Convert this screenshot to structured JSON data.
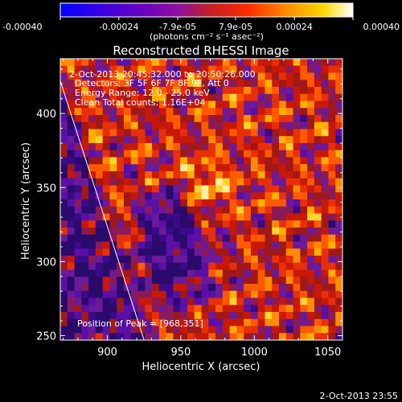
{
  "chart_data": {
    "type": "heatmap",
    "title": "Reconstructed RHESSI Image",
    "xlabel": "Heliocentric X (arcsec)",
    "ylabel": "Heliocentric Y (arcsec)",
    "xlim": [
      868,
      1060
    ],
    "ylim": [
      247,
      437
    ],
    "xticks": [
      "900",
      "950",
      "1000",
      "1050"
    ],
    "xtick_values": [
      900,
      950,
      1000,
      1050
    ],
    "yticks": [
      "250",
      "300",
      "350",
      "400"
    ],
    "ytick_values": [
      250,
      300,
      350,
      400
    ],
    "colorbar": {
      "label": "(photons cm⁻² s⁻¹ asec⁻²)",
      "tick_labels": [
        "-0.00040",
        "-0.00024",
        "-7.9e-05",
        "7.9e-05",
        "0.00024",
        "0.00040"
      ],
      "tick_values": [
        -0.0004,
        -0.00024,
        -7.9e-05,
        7.9e-05,
        0.00024,
        0.0004
      ],
      "range": [
        -0.0004,
        0.0004
      ]
    },
    "annotations": [
      "2-Oct-2013 20:45:32.000 to 20:50:26.000",
      "Detectors: 3F 5F 6F 7F 8F 9F, Att 0",
      "Energy Range: 12.0 - 25.0 keV",
      "Clean    Total counts: 1.16E+04"
    ],
    "peak_text": "Position of Peak = [968,351]",
    "peak": [
      968,
      351
    ],
    "limb_line": [
      [
        868,
        422
      ],
      [
        925,
        247
      ]
    ],
    "grid": false
  },
  "footer": {
    "timestamp": "2-Oct-2013 23:55"
  }
}
